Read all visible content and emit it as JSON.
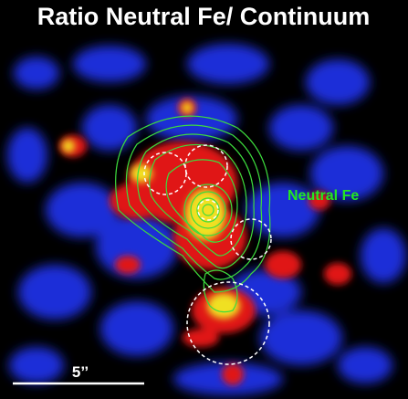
{
  "title": "Ratio Neutral Fe/ Continuum",
  "annotations": {
    "contour_label": "Neutral Fe",
    "scale_bar": "5’’"
  }
}
